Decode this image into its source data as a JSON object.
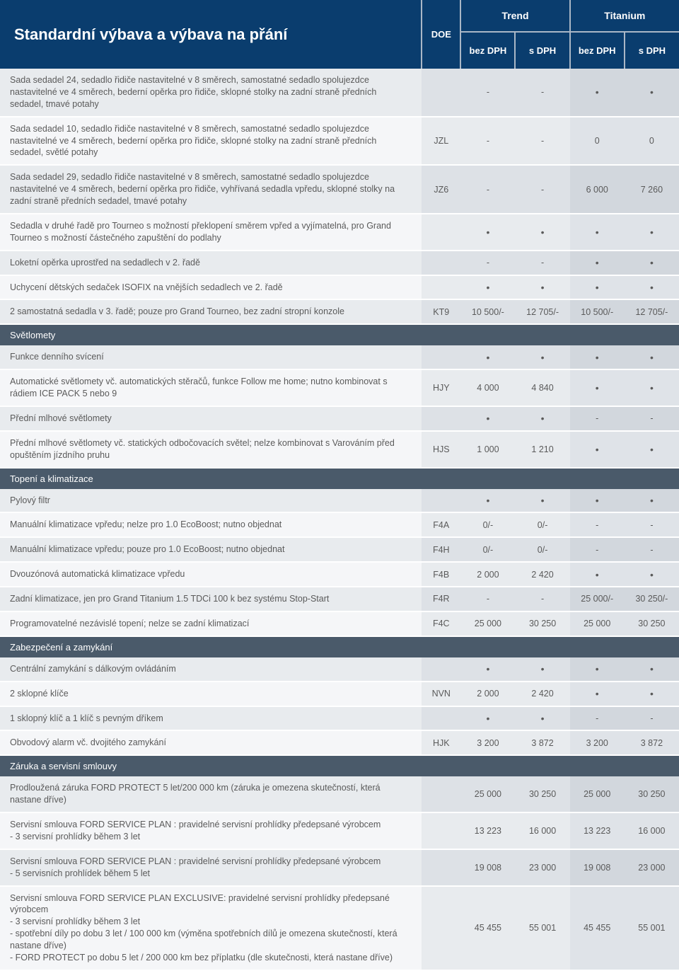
{
  "header": {
    "title": "Standardní výbava a výbava na přání",
    "doe": "DOE",
    "groups": [
      "Trend",
      "Titanium"
    ],
    "subs": [
      "bez DPH",
      "s DPH",
      "bez DPH",
      "s DPH"
    ]
  },
  "colors": {
    "header_bg": "#0a3d6e",
    "section_bg": "#4a5a6a",
    "text": "#5a5a5a"
  },
  "col_widths": {
    "desc": 595,
    "doe": 55,
    "val": 77
  },
  "rows": [
    {
      "type": "data",
      "stripe": "even",
      "desc": "Sada sedadel 24, sedadlo řidiče nastavitelné v 8 směrech, samostatné sedadlo spolujezdce nastavitelné ve 4 směrech, bederní opěrka pro řidiče, sklopné stolky na zadní straně předních sedadel, tmavé potahy",
      "doe": "",
      "v": [
        "-",
        "-",
        "•",
        "•"
      ]
    },
    {
      "type": "data",
      "stripe": "odd",
      "desc": "Sada sedadel 10, sedadlo řidiče nastavitelné v 8 směrech, samostatné sedadlo spolujezdce nastavitelné ve 4 směrech, bederní opěrka pro řidiče, sklopné stolky na zadní straně předních sedadel, světlé potahy",
      "doe": "JZL",
      "v": [
        "-",
        "-",
        "0",
        "0"
      ]
    },
    {
      "type": "data",
      "stripe": "even",
      "desc": "Sada sedadel 29, sedadlo řidiče nastavitelné v 8 směrech, samostatné sedadlo spolujezdce nastavitelné ve 4 směrech, bederní opěrka pro řidiče, vyhřívaná sedadla vpředu, sklopné stolky na zadní straně předních sedadel, tmavé potahy",
      "doe": "JZ6",
      "v": [
        "-",
        "-",
        "6 000",
        "7 260"
      ]
    },
    {
      "type": "data",
      "stripe": "odd",
      "desc": "Sedadla v druhé řadě pro Tourneo s možností překlopení směrem vpřed a vyjímatelná, pro Grand Tourneo s možností částečného zapuštění do podlahy",
      "doe": "",
      "v": [
        "•",
        "•",
        "•",
        "•"
      ]
    },
    {
      "type": "data",
      "stripe": "even",
      "desc": "Loketní opěrka uprostřed na sedadlech v 2. řadě",
      "doe": "",
      "v": [
        "-",
        "-",
        "•",
        "•"
      ]
    },
    {
      "type": "data",
      "stripe": "odd",
      "desc": "Uchycení dětských sedaček ISOFIX na vnějších sedadlech ve 2. řadě",
      "doe": "",
      "v": [
        "•",
        "•",
        "•",
        "•"
      ]
    },
    {
      "type": "data",
      "stripe": "even",
      "desc": "2 samostatná sedadla v 3. řadě; pouze pro Grand Tourneo, bez zadní stropní konzole",
      "doe": "KT9",
      "v": [
        "10 500/-",
        "12 705/-",
        "10 500/-",
        "12 705/-"
      ]
    },
    {
      "type": "section",
      "label": "Světlomety"
    },
    {
      "type": "data",
      "stripe": "even",
      "desc": "Funkce denního svícení",
      "doe": "",
      "v": [
        "•",
        "•",
        "•",
        "•"
      ]
    },
    {
      "type": "data",
      "stripe": "odd",
      "desc": "Automatické světlomety vč. automatických stěračů, funkce Follow me home;  nutno kombinovat s rádiem ICE PACK 5 nebo 9",
      "doe": "HJY",
      "v": [
        "4 000",
        "4 840",
        "•",
        "•"
      ]
    },
    {
      "type": "data",
      "stripe": "even",
      "desc": "Přední mlhové světlomety",
      "doe": "",
      "v": [
        "•",
        "•",
        "-",
        "-"
      ]
    },
    {
      "type": "data",
      "stripe": "odd",
      "desc": "Přední mlhové světlomety vč. statických odbočovacích světel; nelze kombinovat s Varováním před opuštěním jízdního pruhu",
      "doe": "HJS",
      "v": [
        "1 000",
        "1 210",
        "•",
        "•"
      ]
    },
    {
      "type": "section",
      "label": "Topení a klimatizace"
    },
    {
      "type": "data",
      "stripe": "even",
      "desc": "Pylový filtr",
      "doe": "",
      "v": [
        "•",
        "•",
        "•",
        "•"
      ]
    },
    {
      "type": "data",
      "stripe": "odd",
      "desc": "Manuální klimatizace vpředu; nelze pro 1.0 EcoBoost; nutno objednat",
      "doe": "F4A",
      "v": [
        "0/-",
        "0/-",
        "-",
        "-"
      ]
    },
    {
      "type": "data",
      "stripe": "even",
      "desc": "Manuální klimatizace vpředu; pouze pro 1.0 EcoBoost; nutno objednat",
      "doe": "F4H",
      "v": [
        "0/-",
        "0/-",
        "-",
        "-"
      ]
    },
    {
      "type": "data",
      "stripe": "odd",
      "desc": "Dvouzónová automatická klimatizace vpředu",
      "doe": "F4B",
      "v": [
        "2 000",
        "2 420",
        "•",
        "•"
      ]
    },
    {
      "type": "data",
      "stripe": "even",
      "desc": "Zadní klimatizace, jen pro Grand Titanium 1.5 TDCi 100 k bez systému Stop-Start",
      "doe": "F4R",
      "v": [
        "-",
        "-",
        "25 000/-",
        "30 250/-"
      ]
    },
    {
      "type": "data",
      "stripe": "odd",
      "desc": "Programovatelné nezávislé topení; nelze se zadní klimatizací",
      "doe": "F4C",
      "v": [
        "25 000",
        "30 250",
        "25 000",
        "30 250"
      ]
    },
    {
      "type": "section",
      "label": "Zabezpečení a zamykání"
    },
    {
      "type": "data",
      "stripe": "even",
      "desc": "Centrální zamykání s dálkovým ovládáním",
      "doe": "",
      "v": [
        "•",
        "•",
        "•",
        "•"
      ]
    },
    {
      "type": "data",
      "stripe": "odd",
      "desc": "2 sklopné klíče",
      "doe": "NVN",
      "v": [
        "2 000",
        "2 420",
        "•",
        "•"
      ]
    },
    {
      "type": "data",
      "stripe": "even",
      "desc": "1 sklopný klíč a 1 klíč s pevným dříkem",
      "doe": "",
      "v": [
        "•",
        "•",
        "-",
        "-"
      ]
    },
    {
      "type": "data",
      "stripe": "odd",
      "desc": "Obvodový alarm vč. dvojitého zamykání",
      "doe": "HJK",
      "v": [
        "3 200",
        "3 872",
        "3 200",
        "3 872"
      ]
    },
    {
      "type": "section",
      "label": "Záruka a servisní smlouvy"
    },
    {
      "type": "data",
      "stripe": "even",
      "desc": "Prodloužená záruka FORD PROTECT 5 let/200 000 km (záruka je omezena skutečností, která nastane dříve)",
      "doe": "",
      "v": [
        "25 000",
        "30 250",
        "25 000",
        "30 250"
      ]
    },
    {
      "type": "data",
      "stripe": "odd",
      "desc": "Servisní smlouva FORD SERVICE PLAN : pravidelné servisní prohlídky předepsané výrobcem\n- 3 servisní prohlídky během 3 let",
      "doe": "",
      "v": [
        "13 223",
        "16 000",
        "13 223",
        "16 000"
      ]
    },
    {
      "type": "data",
      "stripe": "even",
      "desc": "Servisní smlouva FORD SERVICE PLAN : pravidelné servisní prohlídky předepsané výrobcem\n- 5 servisních prohlídek během 5 let",
      "doe": "",
      "v": [
        "19 008",
        "23 000",
        "19 008",
        "23 000"
      ]
    },
    {
      "type": "data",
      "stripe": "odd",
      "desc": "Servisní smlouva FORD SERVICE PLAN EXCLUSIVE: pravidelné servisní prohlídky předepsané výrobcem\n- 3 servisní prohlídky během 3 let\n- spotřební díly po dobu 3 let / 100 000 km (výměna spotřebních dílů je omezena skutečností, která nastane dříve)\n- FORD PROTECT po dobu 5 let / 200 000 km bez příplatku (dle skutečnosti, která nastane dříve)",
      "doe": "",
      "v": [
        "45 455",
        "55 001",
        "45 455",
        "55 001"
      ]
    }
  ]
}
